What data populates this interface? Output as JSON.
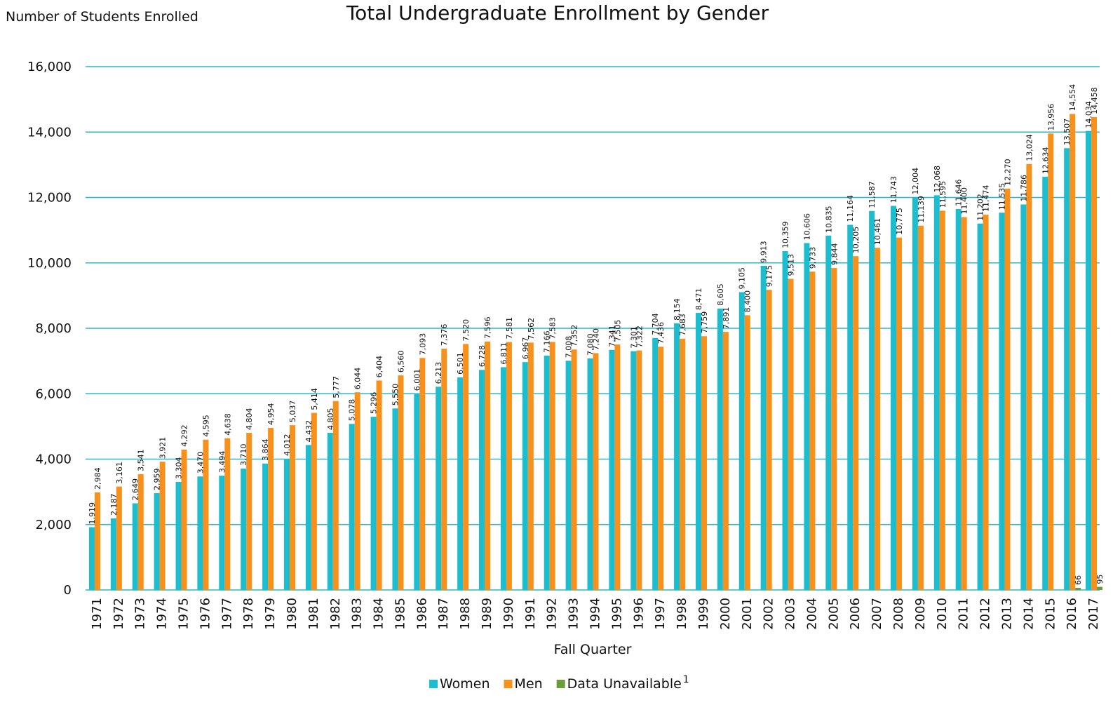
{
  "chart_data": {
    "type": "bar",
    "title": "Total Undergraduate Enrollment by Gender",
    "y_label": "Number of Students Enrolled",
    "x_label": "Fall Quarter",
    "categories": [
      "1971",
      "1972",
      "1973",
      "1974",
      "1975",
      "1976",
      "1977",
      "1978",
      "1979",
      "1980",
      "1981",
      "1982",
      "1983",
      "1984",
      "1985",
      "1986",
      "1987",
      "1988",
      "1989",
      "1990",
      "1991",
      "1992",
      "1993",
      "1994",
      "1995",
      "1996",
      "1997",
      "1998",
      "1999",
      "2000",
      "2001",
      "2002",
      "2003",
      "2004",
      "2005",
      "2006",
      "2007",
      "2008",
      "2009",
      "2010",
      "2011",
      "2012",
      "2013",
      "2014",
      "2015",
      "2016",
      "2017"
    ],
    "series": [
      {
        "name": "Women",
        "color": "#1cbdcf",
        "values": [
          1919,
          2187,
          2649,
          2959,
          3304,
          3470,
          3494,
          3710,
          3864,
          4012,
          4432,
          4805,
          5078,
          5296,
          5550,
          6001,
          6213,
          6501,
          6728,
          6811,
          6967,
          7166,
          7008,
          7080,
          7341,
          7301,
          7704,
          8154,
          8471,
          8605,
          9105,
          9913,
          10359,
          10606,
          10835,
          11164,
          11587,
          11743,
          12004,
          12068,
          11646,
          11202,
          11535,
          11786,
          12634,
          13507,
          14034
        ],
        "value_labels": [
          "1,919",
          "2,187",
          "2,649",
          "2,959",
          "3,304",
          "3,470",
          "3,494",
          "3,710",
          "3,864",
          "4,012",
          "4,432",
          "4,805",
          "5,078",
          "5,296",
          "5,550",
          "6,001",
          "6,213",
          "6,501",
          "6,728",
          "6,811",
          "6,967",
          "7,166",
          "7,008",
          "7,080",
          "7,341",
          "7,301",
          "7,704",
          "8,154",
          "8,471",
          "8,605",
          "9,105",
          "9,913",
          "10,359",
          "10,606",
          "10,835",
          "11,164",
          "11,587",
          "11,743",
          "12,004",
          "12,068",
          "11,646",
          "11,202",
          "11,535",
          "11,786",
          "12,634",
          "13,507",
          "14,034"
        ]
      },
      {
        "name": "Men",
        "color": "#f8901c",
        "values": [
          2984,
          3161,
          3541,
          3921,
          4292,
          4595,
          4638,
          4804,
          4954,
          5037,
          5414,
          5777,
          6044,
          6404,
          6560,
          7093,
          7376,
          7520,
          7596,
          7581,
          7562,
          7583,
          7352,
          7240,
          7505,
          7322,
          7436,
          7683,
          7759,
          7891,
          8400,
          9175,
          9513,
          9733,
          9844,
          10205,
          10461,
          10775,
          11139,
          11595,
          11400,
          11474,
          12270,
          13024,
          13956,
          14554,
          14458
        ],
        "value_labels": [
          "2,984",
          "3,161",
          "3,541",
          "3,921",
          "4,292",
          "4,595",
          "4,638",
          "4,804",
          "4,954",
          "5,037",
          "5,414",
          "5,777",
          "6,044",
          "6,404",
          "6,560",
          "7,093",
          "7,376",
          "7,520",
          "7,596",
          "7,581",
          "7,562",
          "7,583",
          "7,352",
          "7,240",
          "7,505",
          "7,322",
          "7,436",
          "7,683",
          "7,759",
          "7,891",
          "8,400",
          "9,175",
          "9,513",
          "9,733",
          "9,844",
          "10,205",
          "10,461",
          "10,775",
          "11,139",
          "11,595",
          "11,400",
          "11,474",
          "12,270",
          "13,024",
          "13,956",
          "14,554",
          "14,458"
        ]
      },
      {
        "name": "Data Unavailable",
        "note": "1",
        "color": "#6b9b3a",
        "values": [
          null,
          null,
          null,
          null,
          null,
          null,
          null,
          null,
          null,
          null,
          null,
          null,
          null,
          null,
          null,
          null,
          null,
          null,
          null,
          null,
          null,
          null,
          null,
          null,
          null,
          null,
          null,
          null,
          null,
          null,
          null,
          null,
          null,
          null,
          null,
          null,
          null,
          null,
          null,
          null,
          null,
          null,
          null,
          null,
          null,
          66,
          95
        ]
      }
    ],
    "ylim": [
      0,
      16000
    ],
    "yticks": [
      0,
      {
        "value": 2000,
        "label": "2,000"
      },
      {
        "value": 4000,
        "label": "4,000"
      },
      {
        "value": 6000,
        "label": "6,000"
      },
      {
        "value": 8000,
        "label": "8,000"
      },
      {
        "value": 10000,
        "label": "10,000"
      },
      {
        "value": 12000,
        "label": "12,000"
      },
      {
        "value": 14000,
        "label": "14,000"
      },
      {
        "value": 16000,
        "label": "16,000"
      }
    ],
    "grid": true,
    "legend": "bottom"
  }
}
